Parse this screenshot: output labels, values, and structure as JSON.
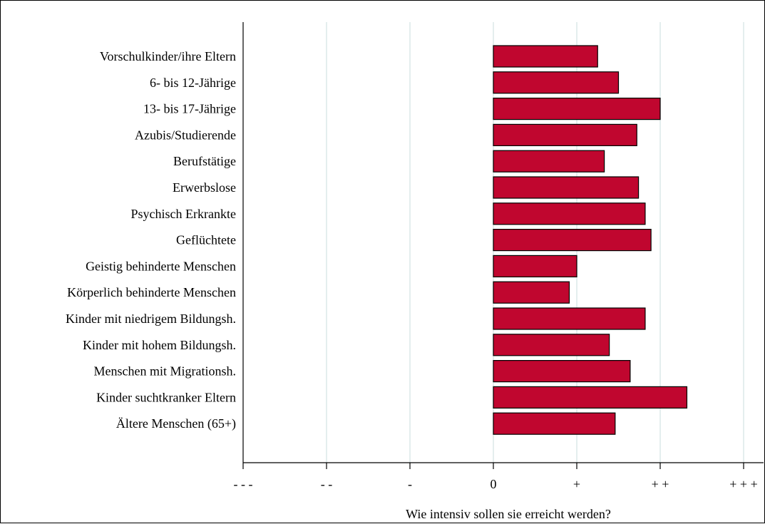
{
  "chart_data": {
    "type": "bar",
    "orientation": "horizontal",
    "categories": [
      "Vorschulkinder/ihre Eltern",
      "6- bis 12-Jährige",
      "13- bis 17-Jährige",
      "Azubis/Studierende",
      "Berufstätige",
      "Erwerbslose",
      "Psychisch Erkrankte",
      "Geflüchtete",
      "Geistig behinderte Menschen",
      "Körperlich behinderte Menschen",
      "Kinder mit niedrigem Bildungsh.",
      "Kinder mit hohem Bildungsh.",
      "Menschen mit Migrationsh.",
      "Kinder suchtkranker Eltern",
      "Ältere Menschen (65+)"
    ],
    "values": [
      1.25,
      1.5,
      2.0,
      1.72,
      1.33,
      1.74,
      1.82,
      1.89,
      1.0,
      0.91,
      1.82,
      1.39,
      1.64,
      2.32,
      1.46
    ],
    "xlim": [
      -3,
      3
    ],
    "xticks": [
      -3,
      -2,
      -1,
      0,
      1,
      2,
      3
    ],
    "xtick_labels": [
      "- - -",
      "- -",
      "-",
      "0",
      "+",
      "+ +",
      "+ + +"
    ],
    "xlabel": "Wie intensiv sollen sie erreicht werden?",
    "ylabel": "",
    "title": "",
    "grid": "vertical",
    "colors": {
      "bar_fill": "#c0062f",
      "bar_stroke": "#000000",
      "grid": "#dbe9e9"
    }
  }
}
